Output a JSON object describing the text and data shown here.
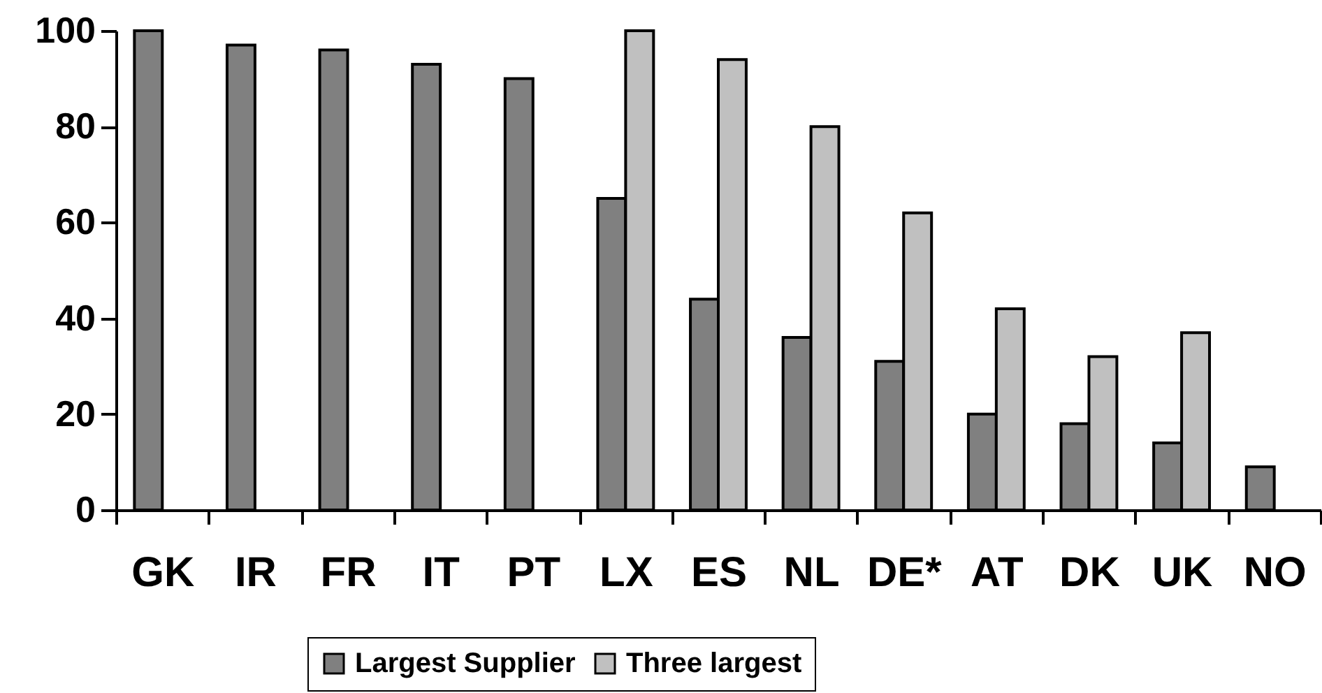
{
  "chart_data": {
    "type": "bar",
    "categories": [
      "GK",
      "IR",
      "FR",
      "IT",
      "PT",
      "LX",
      "ES",
      "NL",
      "DE*",
      "AT",
      "DK",
      "UK",
      "NO"
    ],
    "series": [
      {
        "name": "Largest Supplier",
        "color": "#808080",
        "values": [
          100,
          97,
          96,
          93,
          90,
          65,
          44,
          36,
          31,
          20,
          18,
          14,
          9
        ]
      },
      {
        "name": "Three largest",
        "color": "#c0c0c0",
        "values": [
          null,
          null,
          null,
          null,
          null,
          100,
          94,
          80,
          62,
          42,
          32,
          37,
          null
        ]
      }
    ],
    "ylim": [
      0,
      100
    ],
    "yticks": [
      0,
      20,
      40,
      60,
      80,
      100
    ],
    "grid": false,
    "legend": "bottom"
  }
}
